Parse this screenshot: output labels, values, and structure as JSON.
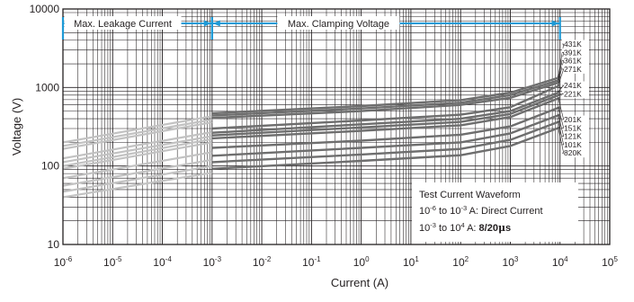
{
  "chart_data": {
    "type": "line",
    "scale": {
      "x": "log",
      "y": "log"
    },
    "xlim": [
      1e-06,
      100000
    ],
    "ylim": [
      10,
      10000
    ],
    "xlabel": "Current (A)",
    "ylabel": "Voltage (V)",
    "grid": true,
    "x_ticks": [
      {
        "base": "10",
        "exp": "-6",
        "value": 1e-06
      },
      {
        "base": "10",
        "exp": "-5",
        "value": 1e-05
      },
      {
        "base": "10",
        "exp": "-4",
        "value": 0.0001
      },
      {
        "base": "10",
        "exp": "-3",
        "value": 0.001
      },
      {
        "base": "10",
        "exp": "-2",
        "value": 0.01
      },
      {
        "base": "10",
        "exp": "-1",
        "value": 0.1
      },
      {
        "base": "10",
        "exp": "0",
        "value": 1
      },
      {
        "base": "10",
        "exp": "1",
        "value": 10
      },
      {
        "base": "10",
        "exp": "2",
        "value": 100
      },
      {
        "base": "10",
        "exp": "3",
        "value": 1000
      },
      {
        "base": "10",
        "exp": "4",
        "value": 10000
      },
      {
        "base": "10",
        "exp": "5",
        "value": 100000
      }
    ],
    "y_ticks": [
      {
        "label": "10",
        "value": 10
      },
      {
        "label": "100",
        "value": 100
      },
      {
        "label": "1000",
        "value": 1000
      },
      {
        "label": "10000",
        "value": 10000
      }
    ],
    "regions": [
      {
        "label": "Max. Leakage Current",
        "x_from": 1e-06,
        "x_to": 0.001
      },
      {
        "label": "Max. Clamping Voltage",
        "x_from": 0.001,
        "x_to": 10000
      }
    ],
    "leakage_color": "#c2c2c2",
    "clamp_color": "#6e6e6e",
    "region_color": "#1e9ad6",
    "series": [
      {
        "name": "431K",
        "leak": [
          [
            1e-06,
            200
          ],
          [
            0.001,
            430
          ]
        ],
        "clamp": [
          [
            0.001,
            470
          ],
          [
            1,
            580
          ],
          [
            100,
            690
          ],
          [
            1000,
            860
          ],
          [
            10000,
            1350
          ]
        ]
      },
      {
        "name": "391K",
        "leak": [
          [
            1e-06,
            180
          ],
          [
            0.001,
            390
          ]
        ],
        "clamp": [
          [
            0.001,
            440
          ],
          [
            1,
            540
          ],
          [
            100,
            640
          ],
          [
            1000,
            800
          ],
          [
            10000,
            1250
          ]
        ]
      },
      {
        "name": "361K",
        "leak": [
          [
            1e-06,
            165
          ],
          [
            0.001,
            360
          ]
        ],
        "clamp": [
          [
            0.001,
            410
          ],
          [
            1,
            500
          ],
          [
            100,
            600
          ],
          [
            1000,
            740
          ],
          [
            10000,
            1170
          ]
        ]
      },
      {
        "name": "271K",
        "leak": [
          [
            1e-06,
            125
          ],
          [
            0.001,
            270
          ]
        ],
        "clamp": [
          [
            0.001,
            300
          ],
          [
            1,
            380
          ],
          [
            100,
            450
          ],
          [
            1000,
            560
          ],
          [
            10000,
            1070
          ]
        ]
      },
      {
        "name": "241K",
        "leak": [
          [
            1e-06,
            112
          ],
          [
            0.001,
            240
          ]
        ],
        "clamp": [
          [
            0.001,
            265
          ],
          [
            1,
            340
          ],
          [
            100,
            400
          ],
          [
            1000,
            500
          ],
          [
            10000,
            880
          ]
        ]
      },
      {
        "name": "221K",
        "leak": [
          [
            1e-06,
            100
          ],
          [
            0.001,
            220
          ]
        ],
        "clamp": [
          [
            0.001,
            245
          ],
          [
            1,
            310
          ],
          [
            100,
            365
          ],
          [
            1000,
            460
          ],
          [
            10000,
            810
          ]
        ]
      },
      {
        "name": "201K",
        "leak": [
          [
            1e-06,
            92
          ],
          [
            0.001,
            200
          ]
        ],
        "clamp": [
          [
            0.001,
            225
          ],
          [
            1,
            280
          ],
          [
            100,
            330
          ],
          [
            1000,
            420
          ],
          [
            10000,
            740
          ]
        ]
      },
      {
        "name": "151K",
        "leak": [
          [
            1e-06,
            70
          ],
          [
            0.001,
            150
          ]
        ],
        "clamp": [
          [
            0.001,
            170
          ],
          [
            1,
            210
          ],
          [
            100,
            250
          ],
          [
            1000,
            320
          ],
          [
            10000,
            560
          ]
        ]
      },
      {
        "name": "121K",
        "leak": [
          [
            1e-06,
            56
          ],
          [
            0.001,
            120
          ]
        ],
        "clamp": [
          [
            0.001,
            135
          ],
          [
            1,
            170
          ],
          [
            100,
            200
          ],
          [
            1000,
            260
          ],
          [
            10000,
            450
          ]
        ]
      },
      {
        "name": "101K",
        "leak": [
          [
            1e-06,
            47
          ],
          [
            0.001,
            100
          ]
        ],
        "clamp": [
          [
            0.001,
            112
          ],
          [
            1,
            140
          ],
          [
            100,
            165
          ],
          [
            1000,
            215
          ],
          [
            10000,
            370
          ]
        ]
      },
      {
        "name": "820K",
        "leak": [
          [
            1e-06,
            40
          ],
          [
            0.001,
            82
          ]
        ],
        "clamp": [
          [
            0.001,
            92
          ],
          [
            1,
            116
          ],
          [
            100,
            137
          ],
          [
            1000,
            180
          ],
          [
            10000,
            310
          ]
        ]
      }
    ],
    "annotation": {
      "title": "Test Current Waveform",
      "line1": {
        "base1": "10",
        "exp1": "-6",
        "to": " to ",
        "base2": "10",
        "exp2": "-3",
        "text": " A: Direct Current"
      },
      "line2": {
        "base1": "10",
        "exp1": "-3",
        "to": " to ",
        "base2": "10",
        "exp2": "4",
        "text": " A: ",
        "bold": "8/20",
        "mu": "μ",
        "s": "s"
      }
    }
  }
}
